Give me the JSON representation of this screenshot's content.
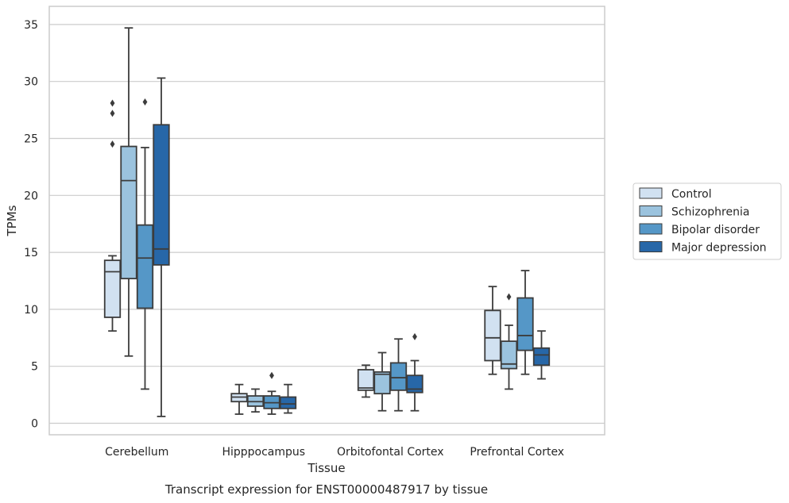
{
  "chart_data": {
    "type": "box",
    "caption": "Transcript expression for ENST00000487917 by tissue",
    "xlabel": "Tissue",
    "ylabel": "TPMs",
    "ylim": [
      -1.0,
      36.5
    ],
    "yticks": [
      0,
      5,
      10,
      15,
      20,
      25,
      30,
      35
    ],
    "grid": "horizontal",
    "legend_position": "right",
    "categories": [
      "Cerebellum",
      "Hipppocampus",
      "Orbitofontal Cortex",
      "Prefrontal Cortex"
    ],
    "colors": {
      "Control": "#d1e1f1",
      "Schizophrenia": "#9bc3de",
      "Bipolar disorder": "#5597c7",
      "Major depression": "#2767a8"
    },
    "series": [
      {
        "name": "Control",
        "boxes": [
          {
            "min": 8.1,
            "q1": 9.3,
            "median": 13.3,
            "q3": 14.3,
            "max": 14.7,
            "outliers": [
              24.5,
              27.2,
              28.1
            ]
          },
          {
            "min": 0.8,
            "q1": 1.9,
            "median": 2.3,
            "q3": 2.6,
            "max": 3.4,
            "outliers": []
          },
          {
            "min": 2.3,
            "q1": 2.9,
            "median": 3.1,
            "q3": 4.7,
            "max": 5.1,
            "outliers": []
          },
          {
            "min": 4.3,
            "q1": 5.5,
            "median": 7.5,
            "q3": 9.9,
            "max": 12.0,
            "outliers": []
          }
        ]
      },
      {
        "name": "Schizophrenia",
        "boxes": [
          {
            "min": 5.9,
            "q1": 12.7,
            "median": 21.3,
            "q3": 24.3,
            "max": 34.7,
            "outliers": []
          },
          {
            "min": 1.0,
            "q1": 1.5,
            "median": 1.9,
            "q3": 2.4,
            "max": 3.0,
            "outliers": []
          },
          {
            "min": 1.1,
            "q1": 2.6,
            "median": 4.3,
            "q3": 4.5,
            "max": 6.2,
            "outliers": []
          },
          {
            "min": 3.0,
            "q1": 4.8,
            "median": 5.2,
            "q3": 7.2,
            "max": 8.6,
            "outliers": [
              11.1
            ]
          }
        ]
      },
      {
        "name": "Bipolar disorder",
        "boxes": [
          {
            "min": 3.0,
            "q1": 10.1,
            "median": 14.5,
            "q3": 17.4,
            "max": 24.2,
            "outliers": [
              28.2
            ]
          },
          {
            "min": 0.8,
            "q1": 1.3,
            "median": 1.8,
            "q3": 2.4,
            "max": 2.8,
            "outliers": [
              4.2
            ]
          },
          {
            "min": 1.1,
            "q1": 2.9,
            "median": 4.0,
            "q3": 5.3,
            "max": 7.4,
            "outliers": []
          },
          {
            "min": 4.3,
            "q1": 6.4,
            "median": 7.7,
            "q3": 11.0,
            "max": 13.4,
            "outliers": []
          }
        ]
      },
      {
        "name": "Major depression",
        "boxes": [
          {
            "min": 0.6,
            "q1": 13.9,
            "median": 15.3,
            "q3": 26.2,
            "max": 30.3,
            "outliers": []
          },
          {
            "min": 0.9,
            "q1": 1.3,
            "median": 1.7,
            "q3": 2.3,
            "max": 3.4,
            "outliers": []
          },
          {
            "min": 1.1,
            "q1": 2.7,
            "median": 3.0,
            "q3": 4.2,
            "max": 5.5,
            "outliers": [
              7.6
            ]
          },
          {
            "min": 3.9,
            "q1": 5.1,
            "median": 6.0,
            "q3": 6.6,
            "max": 8.1,
            "outliers": []
          }
        ]
      }
    ]
  }
}
